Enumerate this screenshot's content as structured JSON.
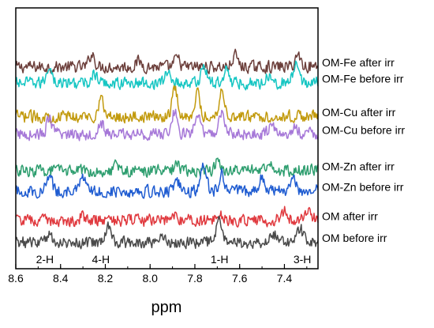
{
  "chart_data": {
    "type": "line",
    "title": "",
    "xlabel": "ppm",
    "ylabel": "",
    "x_reversed": true,
    "xlim": [
      8.6,
      7.25
    ],
    "xticks": [
      8.6,
      8.4,
      8.2,
      8.0,
      7.8,
      7.6,
      7.4
    ],
    "xtick_labels": [
      "8.6",
      "8.4",
      "8.2",
      "8.0",
      "7.8",
      "7.6",
      "7.4"
    ],
    "grid": false,
    "legend_placement": "right of each trace",
    "peak_labels": [
      {
        "text": "2-H",
        "ppm": 8.47
      },
      {
        "text": "4-H",
        "ppm": 8.22
      },
      {
        "text": "1-H",
        "ppm": 7.69
      },
      {
        "text": "3-H",
        "ppm": 7.32
      }
    ],
    "series": [
      {
        "name": "OM-Fe after irr",
        "color": "#6B3E3A",
        "offset": 6.9,
        "peaks": [
          [
            8.26,
            0.45
          ],
          [
            8.05,
            0.2
          ],
          [
            7.88,
            0.3
          ],
          [
            7.62,
            0.4
          ],
          [
            7.34,
            0.4
          ]
        ]
      },
      {
        "name": "OM-Fe before irr",
        "color": "#17C6C3",
        "offset": 6.35,
        "peaks": [
          [
            8.45,
            0.6
          ],
          [
            8.25,
            0.3
          ],
          [
            7.92,
            0.4
          ],
          [
            7.76,
            0.6
          ],
          [
            7.66,
            0.5
          ],
          [
            7.47,
            0.3
          ],
          [
            7.35,
            0.55
          ]
        ]
      },
      {
        "name": "OM-Cu after irr",
        "color": "#C29A0D",
        "offset": 5.2,
        "peaks": [
          [
            8.22,
            0.6
          ],
          [
            7.89,
            1.0
          ],
          [
            7.79,
            0.8
          ],
          [
            7.68,
            0.9
          ]
        ]
      },
      {
        "name": "OM-Cu before irr",
        "color": "#A678D8",
        "offset": 4.6,
        "peaks": [
          [
            8.45,
            0.5
          ],
          [
            8.22,
            0.4
          ],
          [
            7.89,
            0.8
          ],
          [
            7.79,
            0.7
          ],
          [
            7.68,
            0.8
          ],
          [
            7.46,
            0.3
          ],
          [
            7.35,
            0.2
          ]
        ]
      },
      {
        "name": "OM-Zn after irr",
        "color": "#2E9E6F",
        "offset": 3.35,
        "peaks": [
          [
            8.15,
            0.2
          ],
          [
            7.88,
            0.25
          ],
          [
            7.7,
            0.3
          ],
          [
            7.47,
            0.35
          ]
        ]
      },
      {
        "name": "OM-Zn before irr",
        "color": "#1F5CD1",
        "offset": 2.65,
        "peaks": [
          [
            8.45,
            0.5
          ],
          [
            8.3,
            0.45
          ],
          [
            7.88,
            0.3
          ],
          [
            7.76,
            1.0
          ],
          [
            7.68,
            0.6
          ],
          [
            7.5,
            0.5
          ],
          [
            7.36,
            0.5
          ]
        ]
      },
      {
        "name": "OM after irr",
        "color": "#E0393E",
        "offset": 1.65,
        "peaks": [
          [
            8.3,
            0.15
          ],
          [
            7.9,
            0.25
          ],
          [
            7.69,
            0.25
          ],
          [
            7.4,
            0.3
          ],
          [
            7.3,
            0.25
          ]
        ]
      },
      {
        "name": "OM before irr",
        "color": "#4A4A4A",
        "offset": 0.9,
        "peaks": [
          [
            8.45,
            0.3
          ],
          [
            8.19,
            0.5
          ],
          [
            7.95,
            0.25
          ],
          [
            7.69,
            0.8
          ],
          [
            7.45,
            0.3
          ],
          [
            7.33,
            0.45
          ]
        ]
      }
    ]
  }
}
